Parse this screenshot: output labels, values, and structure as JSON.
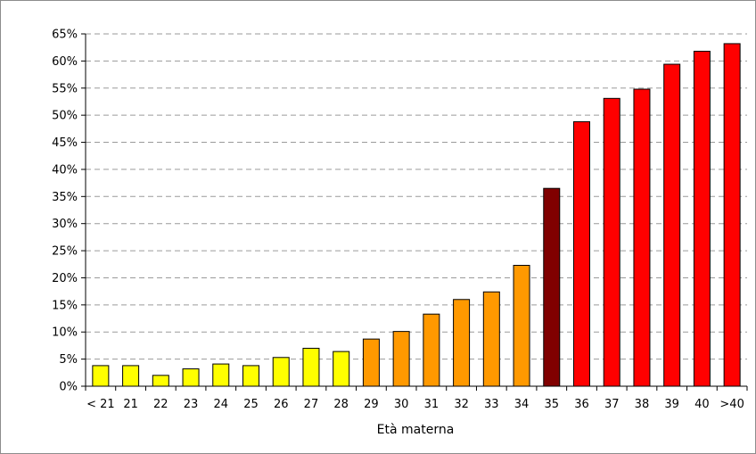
{
  "chart_data": {
    "type": "bar",
    "title": "",
    "xlabel": "Età materna",
    "ylabel": "",
    "ylim": [
      0,
      65
    ],
    "ytick_step": 5,
    "ytick_suffix": "%",
    "grid": "horizontal dashed",
    "legend": "none",
    "categories": [
      "< 21",
      "21",
      "22",
      "23",
      "24",
      "25",
      "26",
      "27",
      "28",
      "29",
      "30",
      "31",
      "32",
      "33",
      "34",
      "35",
      "36",
      "37",
      "38",
      "39",
      "40",
      ">40"
    ],
    "values": [
      3.8,
      3.8,
      2.0,
      3.2,
      4.1,
      3.8,
      5.3,
      7.0,
      6.4,
      8.7,
      10.1,
      13.3,
      16.0,
      17.4,
      22.3,
      36.5,
      48.8,
      53.1,
      54.8,
      59.4,
      61.8,
      63.2
    ],
    "bar_colors": [
      "#ffff00",
      "#ffff00",
      "#ffff00",
      "#ffff00",
      "#ffff00",
      "#ffff00",
      "#ffff00",
      "#ffff00",
      "#ffff00",
      "#ff9900",
      "#ff9900",
      "#ff9900",
      "#ff9900",
      "#ff9900",
      "#ff9900",
      "#800000",
      "#ff0000",
      "#ff0000",
      "#ff0000",
      "#ff0000",
      "#ff0000",
      "#ff0000"
    ]
  }
}
